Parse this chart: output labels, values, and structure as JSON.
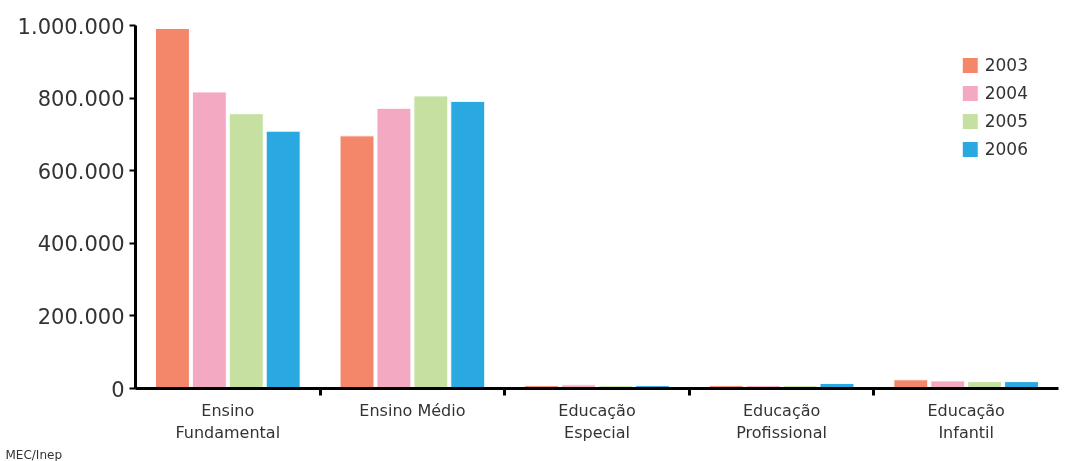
{
  "chart_data": {
    "type": "bar",
    "categories": [
      "Ensino\nFundamental",
      "Ensino Médio",
      "Educação\nEspecial",
      "Educação\nProfissional",
      "Educação\nInfantil"
    ],
    "series": [
      {
        "name": "2003",
        "color": "#f4866a",
        "values": [
          992000,
          696000,
          8000,
          8000,
          24000
        ]
      },
      {
        "name": "2004",
        "color": "#f4a9c2",
        "values": [
          817000,
          772000,
          10000,
          8000,
          21000
        ]
      },
      {
        "name": "2005",
        "color": "#c5e0a0",
        "values": [
          757000,
          806000,
          8000,
          8000,
          19000
        ]
      },
      {
        "name": "2006",
        "color": "#2aa8e0",
        "values": [
          709000,
          791000,
          8000,
          14000,
          19000
        ]
      }
    ],
    "ylim": [
      0,
      1000000
    ],
    "yticks": [
      0,
      {
        "value": 200000,
        "label": "200.000"
      },
      {
        "value": 400000,
        "label": "400.000"
      },
      {
        "value": 600000,
        "label": "600.000"
      },
      {
        "value": 800000,
        "label": "800.000"
      },
      {
        "value": 1000000,
        "label": "1.000.000"
      }
    ],
    "grid": false,
    "legend": "top right",
    "annotations": [
      "MEC/Inep"
    ]
  }
}
